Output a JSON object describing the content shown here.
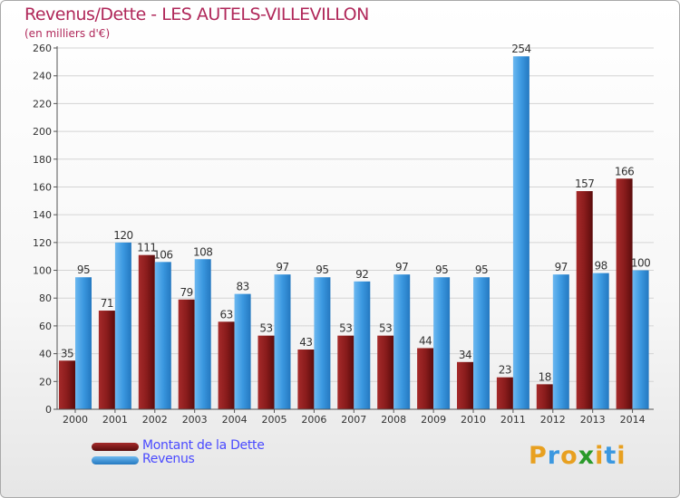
{
  "header": {
    "title": "Revenus/Dette - LES AUTELS-VILLEVILLON",
    "subtitle": "(en milliers d'€)"
  },
  "chart_data": {
    "type": "bar",
    "categories": [
      "2000",
      "2001",
      "2002",
      "2003",
      "2004",
      "2005",
      "2006",
      "2007",
      "2008",
      "2009",
      "2010",
      "2011",
      "2012",
      "2013",
      "2014"
    ],
    "series": [
      {
        "name": "Montant de la Dette",
        "values": [
          35,
          71,
          111,
          79,
          63,
          53,
          43,
          53,
          53,
          44,
          34,
          23,
          18,
          157,
          166
        ],
        "color": "#7a1414"
      },
      {
        "name": "Revenus",
        "values": [
          95,
          120,
          106,
          108,
          83,
          97,
          95,
          92,
          97,
          95,
          95,
          254,
          97,
          98,
          100
        ],
        "color": "#3b98e0"
      }
    ],
    "ylim": [
      0,
      260
    ],
    "yticks": [
      0,
      20,
      40,
      60,
      80,
      100,
      120,
      140,
      160,
      180,
      200,
      220,
      240,
      260
    ],
    "grid": true,
    "legend_position": "bottom-left"
  },
  "legend": {
    "items": [
      {
        "label": "Montant de la Dette",
        "color": "#7a1414"
      },
      {
        "label": "Revenus",
        "color": "#3b98e0"
      }
    ]
  },
  "logo": {
    "text": "Proxiti",
    "colors": [
      "#e8a020",
      "#3b98e0",
      "#e8a020",
      "#2a9a2a",
      "#e8a020",
      "#3b98e0",
      "#e8a020"
    ]
  }
}
